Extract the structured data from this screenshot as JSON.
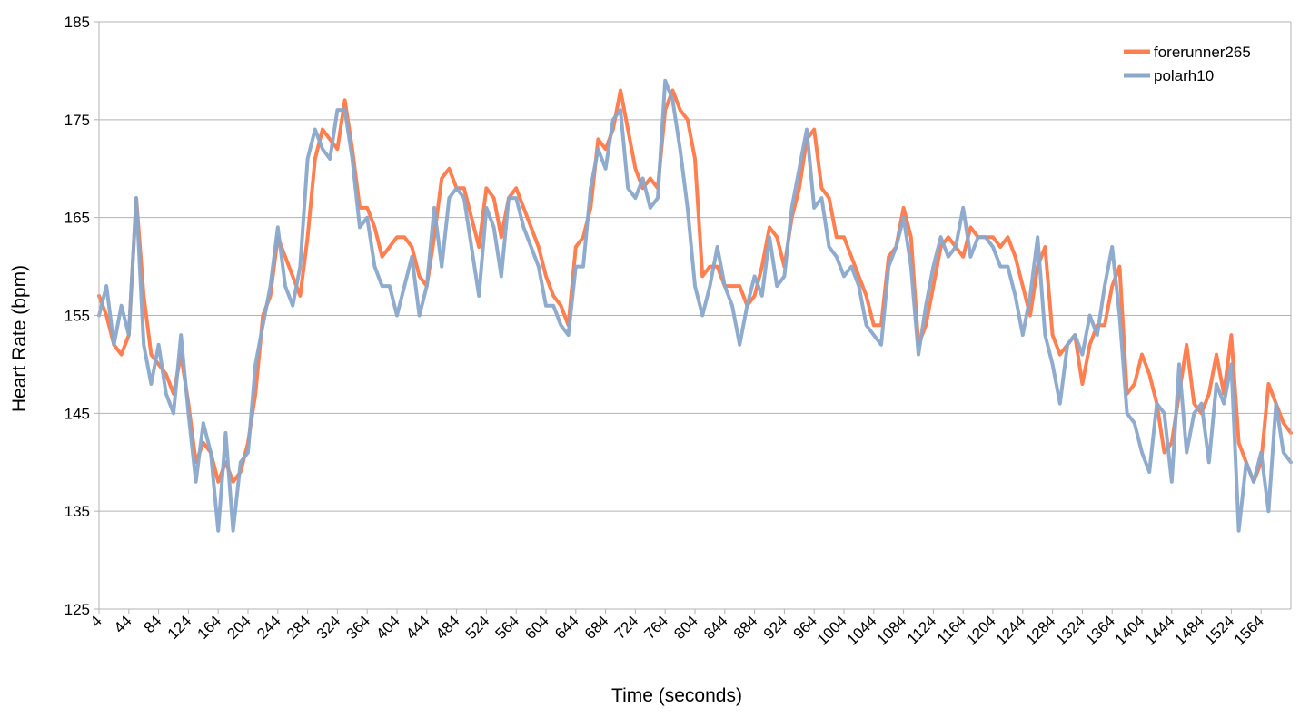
{
  "chart_data": {
    "type": "line",
    "xlabel": "Time (seconds)",
    "ylabel": "Heart Rate (bpm)",
    "ylim": [
      125,
      185
    ],
    "xlim": [
      4,
      1604
    ],
    "yticks": [
      125,
      135,
      145,
      155,
      165,
      175,
      185
    ],
    "xticks": [
      4,
      44,
      84,
      124,
      164,
      204,
      244,
      284,
      324,
      364,
      404,
      444,
      484,
      524,
      564,
      604,
      644,
      684,
      724,
      764,
      804,
      844,
      884,
      924,
      964,
      1004,
      1044,
      1084,
      1124,
      1164,
      1204,
      1244,
      1284,
      1324,
      1364,
      1404,
      1444,
      1484,
      1524,
      1564
    ],
    "grid": "horizontal",
    "legend_position": "top-right",
    "series": [
      {
        "name": "forerunner265",
        "color": "#ff7f50",
        "x": [
          4,
          14,
          24,
          34,
          44,
          54,
          64,
          74,
          84,
          94,
          104,
          114,
          124,
          134,
          144,
          154,
          164,
          174,
          184,
          194,
          204,
          214,
          224,
          234,
          244,
          254,
          264,
          274,
          284,
          294,
          304,
          314,
          324,
          334,
          344,
          354,
          364,
          374,
          384,
          394,
          404,
          414,
          424,
          434,
          444,
          454,
          464,
          474,
          484,
          494,
          504,
          514,
          524,
          534,
          544,
          554,
          564,
          574,
          584,
          594,
          604,
          614,
          624,
          634,
          644,
          654,
          664,
          674,
          684,
          694,
          704,
          714,
          724,
          734,
          744,
          754,
          764,
          774,
          784,
          794,
          804,
          814,
          824,
          834,
          844,
          854,
          864,
          874,
          884,
          894,
          904,
          914,
          924,
          934,
          944,
          954,
          964,
          974,
          984,
          994,
          1004,
          1014,
          1024,
          1034,
          1044,
          1054,
          1064,
          1074,
          1084,
          1094,
          1104,
          1114,
          1124,
          1134,
          1144,
          1154,
          1164,
          1174,
          1184,
          1194,
          1204,
          1214,
          1224,
          1234,
          1244,
          1254,
          1264,
          1274,
          1284,
          1294,
          1304,
          1314,
          1324,
          1334,
          1344,
          1354,
          1364,
          1374,
          1384,
          1394,
          1404,
          1414,
          1424,
          1434,
          1444,
          1454,
          1464,
          1474,
          1484,
          1494,
          1504,
          1514,
          1524,
          1534,
          1544,
          1554,
          1564,
          1574,
          1584,
          1594,
          1604
        ],
        "values": [
          157,
          155,
          152,
          151,
          153,
          167,
          157,
          151,
          150,
          149,
          147,
          151,
          146,
          140,
          142,
          141,
          138,
          140,
          138,
          139,
          142,
          147,
          155,
          157,
          163,
          161,
          159,
          157,
          163,
          171,
          174,
          173,
          172,
          177,
          172,
          166,
          166,
          164,
          161,
          162,
          163,
          163,
          162,
          159,
          158,
          163,
          169,
          170,
          168,
          168,
          165,
          162,
          168,
          167,
          163,
          167,
          168,
          166,
          164,
          162,
          159,
          157,
          156,
          154,
          162,
          163,
          166,
          173,
          172,
          174,
          178,
          174,
          170,
          168,
          169,
          168,
          176,
          178,
          176,
          175,
          171,
          159,
          160,
          160,
          158,
          158,
          158,
          156,
          157,
          160,
          164,
          163,
          160,
          165,
          168,
          173,
          174,
          168,
          167,
          163,
          163,
          161,
          159,
          157,
          154,
          154,
          161,
          162,
          166,
          163,
          152,
          154,
          158,
          162,
          163,
          162,
          161,
          164,
          163,
          163,
          163,
          162,
          163,
          161,
          158,
          155,
          160,
          162,
          153,
          151,
          152,
          153,
          148,
          152,
          154,
          154,
          158,
          160,
          147,
          148,
          151,
          149,
          146,
          141,
          142,
          147,
          152,
          146,
          145,
          147,
          151,
          147,
          153,
          142,
          140,
          138,
          140,
          148,
          146,
          144,
          143
        ]
      },
      {
        "name": "polarh10",
        "color": "#89a8cc",
        "x": [
          4,
          14,
          24,
          34,
          44,
          54,
          64,
          74,
          84,
          94,
          104,
          114,
          124,
          134,
          144,
          154,
          164,
          174,
          184,
          194,
          204,
          214,
          224,
          234,
          244,
          254,
          264,
          274,
          284,
          294,
          304,
          314,
          324,
          334,
          344,
          354,
          364,
          374,
          384,
          394,
          404,
          414,
          424,
          434,
          444,
          454,
          464,
          474,
          484,
          494,
          504,
          514,
          524,
          534,
          544,
          554,
          564,
          574,
          584,
          594,
          604,
          614,
          624,
          634,
          644,
          654,
          664,
          674,
          684,
          694,
          704,
          714,
          724,
          734,
          744,
          754,
          764,
          774,
          784,
          794,
          804,
          814,
          824,
          834,
          844,
          854,
          864,
          874,
          884,
          894,
          904,
          914,
          924,
          934,
          944,
          954,
          964,
          974,
          984,
          994,
          1004,
          1014,
          1024,
          1034,
          1044,
          1054,
          1064,
          1074,
          1084,
          1094,
          1104,
          1114,
          1124,
          1134,
          1144,
          1154,
          1164,
          1174,
          1184,
          1194,
          1204,
          1214,
          1224,
          1234,
          1244,
          1254,
          1264,
          1274,
          1284,
          1294,
          1304,
          1314,
          1324,
          1334,
          1344,
          1354,
          1364,
          1374,
          1384,
          1394,
          1404,
          1414,
          1424,
          1434,
          1444,
          1454,
          1464,
          1474,
          1484,
          1494,
          1504,
          1514,
          1524,
          1534,
          1544,
          1554,
          1564,
          1574,
          1584,
          1594,
          1604
        ],
        "values": [
          155,
          158,
          152,
          156,
          153,
          167,
          152,
          148,
          152,
          147,
          145,
          153,
          145,
          138,
          144,
          141,
          133,
          143,
          133,
          140,
          141,
          150,
          154,
          158,
          164,
          158,
          156,
          160,
          171,
          174,
          172,
          171,
          176,
          176,
          171,
          164,
          165,
          160,
          158,
          158,
          155,
          158,
          161,
          155,
          158,
          166,
          160,
          167,
          168,
          167,
          162,
          157,
          166,
          164,
          159,
          167,
          167,
          164,
          162,
          160,
          156,
          156,
          154,
          153,
          160,
          160,
          168,
          172,
          170,
          175,
          176,
          168,
          167,
          169,
          166,
          167,
          179,
          177,
          172,
          166,
          158,
          155,
          158,
          162,
          158,
          156,
          152,
          156,
          159,
          157,
          163,
          158,
          159,
          166,
          170,
          174,
          166,
          167,
          162,
          161,
          159,
          160,
          158,
          154,
          153,
          152,
          160,
          162,
          165,
          160,
          151,
          156,
          160,
          163,
          161,
          162,
          166,
          161,
          163,
          163,
          162,
          160,
          160,
          157,
          153,
          157,
          163,
          153,
          150,
          146,
          152,
          153,
          151,
          155,
          153,
          158,
          162,
          155,
          145,
          144,
          141,
          139,
          146,
          145,
          138,
          150,
          141,
          145,
          146,
          140,
          148,
          146,
          150,
          133,
          140,
          138,
          141,
          135,
          146,
          141,
          140
        ]
      }
    ]
  }
}
